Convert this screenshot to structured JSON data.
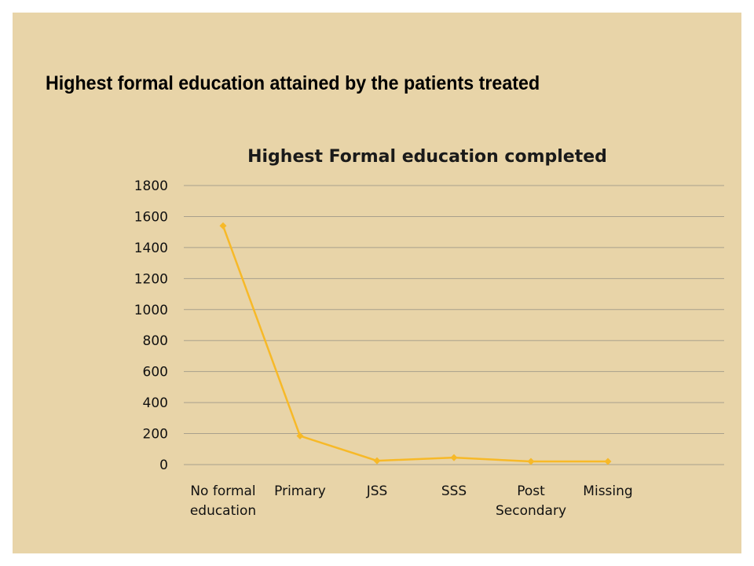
{
  "slide": {
    "title": "Highest formal education attained by the patients treated",
    "background": "#e8d4a8"
  },
  "chart_data": {
    "type": "line",
    "title": "Highest Formal education completed",
    "categories": [
      [
        "No formal",
        "education"
      ],
      [
        "Primary"
      ],
      [
        "JSS"
      ],
      [
        "SSS"
      ],
      [
        "Post",
        "Secondary"
      ],
      [
        "Missing"
      ]
    ],
    "values": [
      1540,
      185,
      25,
      45,
      20,
      20
    ],
    "ylim": [
      0,
      1800
    ],
    "yticks": [
      0,
      200,
      400,
      600,
      800,
      1000,
      1200,
      1400,
      1600,
      1800
    ],
    "grid": true,
    "legend": "none",
    "line_color": "#f7b928"
  }
}
